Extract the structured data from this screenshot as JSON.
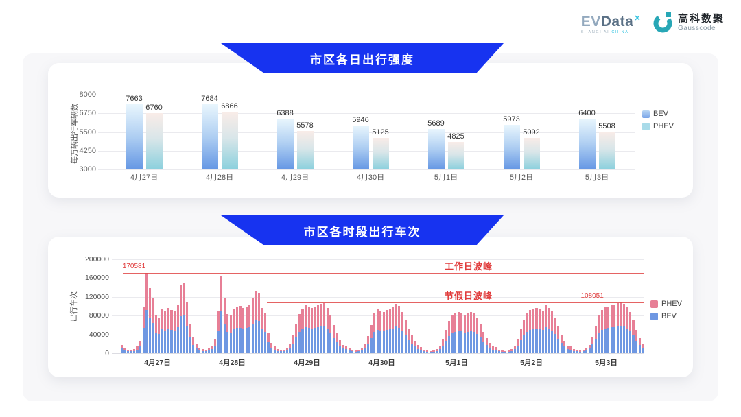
{
  "logos": {
    "evdata": {
      "ev": "EV",
      "data": "Data",
      "sup": "✕",
      "sub1": "SHANGHAI",
      "sub2": "CHINA"
    },
    "gausscode": {
      "cn": "高科数聚",
      "en": "Gausscode"
    }
  },
  "banners": {
    "daily": "市区各日出行强度",
    "hourly": "市区各时段出行车次"
  },
  "colors": {
    "banner_blue": "#1733f0",
    "bev_gradient_top": "#e9f6fd",
    "bev_gradient_bottom": "#6597e4",
    "phev_gradient_top": "#f9ece8",
    "phev_gradient_bottom": "#8bd0dd",
    "stacked_bev_blue": "#6e97e2",
    "stacked_phev_pink": "#e77f96",
    "annotation_red": "#e03a3a"
  },
  "chart_data": [
    {
      "type": "bar",
      "title": "市区各日出行强度",
      "ylabel": "每万辆出行车辆数",
      "ylim": [
        3000,
        8000
      ],
      "yticks": [
        3000,
        4250,
        5500,
        6750,
        8000
      ],
      "grid": true,
      "legend": [
        "BEV",
        "PHEV"
      ],
      "legend_position": "right",
      "categories": [
        "4月27日",
        "4月28日",
        "4月29日",
        "4月30日",
        "5月1日",
        "5月2日",
        "5月3日"
      ],
      "series": [
        {
          "name": "BEV",
          "values": [
            7663,
            7684,
            6388,
            5946,
            5689,
            5973,
            6400
          ]
        },
        {
          "name": "PHEV",
          "values": [
            6760,
            6866,
            5578,
            5125,
            4825,
            5092,
            5508
          ]
        }
      ]
    },
    {
      "type": "stacked-bar",
      "title": "市区各时段出行车次",
      "ylabel": "出行车次",
      "ylim": [
        0,
        200000
      ],
      "yticks": [
        0,
        40000,
        80000,
        120000,
        160000,
        200000
      ],
      "grid": true,
      "legend": [
        "PHEV",
        "BEV"
      ],
      "legend_position": "right",
      "hours_per_day": 24,
      "annotations": {
        "workday_peak": {
          "label": "工作日波峰",
          "value": 170581,
          "value_label": "170581"
        },
        "holiday_peak": {
          "label": "节假日波峰",
          "value": 108051,
          "value_label": "108051"
        }
      },
      "days": [
        {
          "date": "4月27日",
          "bev": [
            9700,
            5900,
            4300,
            3800,
            4900,
            7600,
            14600,
            54000,
            92114,
            74500,
            64300,
            43700,
            41000,
            51300,
            48600,
            51800,
            49700,
            48100,
            56200,
            78800,
            81000,
            58300,
            33500,
            17800
          ],
          "phev": [
            8300,
            5100,
            3700,
            3200,
            4100,
            6400,
            12400,
            46000,
            78467,
            63500,
            54700,
            37300,
            35000,
            43700,
            41400,
            44200,
            42300,
            40900,
            47800,
            67200,
            69000,
            49700,
            28500,
            15200
          ]
        },
        {
          "date": "4月28日",
          "bev": [
            10800,
            6500,
            4900,
            4300,
            5400,
            8600,
            16200,
            48600,
            89100,
            63200,
            44800,
            44300,
            51300,
            53500,
            54500,
            51800,
            54000,
            55600,
            63200,
            71800,
            69100,
            51800,
            45900,
            22700
          ],
          "phev": [
            9200,
            5500,
            4100,
            3700,
            4600,
            7400,
            13800,
            41400,
            75900,
            53800,
            38200,
            37700,
            43700,
            45500,
            46500,
            44200,
            46000,
            47400,
            53800,
            61200,
            58900,
            44200,
            39100,
            19300
          ]
        },
        {
          "date": "4月29日",
          "bev": [
            11900,
            7600,
            4900,
            3800,
            4300,
            5900,
            10800,
            20500,
            33500,
            44800,
            51300,
            55100,
            53500,
            51800,
            54000,
            55600,
            56700,
            57800,
            51800,
            43200,
            32400,
            22700,
            15100,
            9700
          ],
          "phev": [
            10100,
            6400,
            4100,
            3200,
            3700,
            5100,
            9200,
            17500,
            28500,
            38200,
            43700,
            46900,
            45500,
            44200,
            46000,
            47400,
            48300,
            49200,
            44200,
            36800,
            27600,
            19300,
            12900,
            8300
          ]
        },
        {
          "date": "4月30日",
          "bev": [
            8100,
            5400,
            3800,
            3200,
            3800,
            5400,
            10300,
            19400,
            32400,
            45400,
            50200,
            48600,
            47500,
            49700,
            51300,
            52900,
            56700,
            54500,
            47500,
            37800,
            28100,
            20500,
            14000,
            9200
          ],
          "phev": [
            6900,
            4600,
            3200,
            2800,
            3200,
            4600,
            8700,
            16600,
            27600,
            38600,
            42800,
            41400,
            40500,
            42300,
            43700,
            45100,
            48300,
            46500,
            40500,
            32200,
            23900,
            17500,
            12000,
            7800
          ]
        },
        {
          "date": "5月1日",
          "bev": [
            7000,
            4300,
            3200,
            2700,
            3200,
            4900,
            8600,
            16200,
            27000,
            36700,
            43200,
            45900,
            47500,
            46400,
            44300,
            45900,
            47000,
            45400,
            41000,
            33500,
            24800,
            17300,
            11900,
            7600
          ],
          "phev": [
            6000,
            3700,
            2800,
            2300,
            2800,
            4100,
            7400,
            13800,
            23000,
            31300,
            36800,
            39100,
            40500,
            39600,
            37700,
            39100,
            40000,
            38600,
            35000,
            28500,
            21200,
            14700,
            10100,
            6400
          ]
        },
        {
          "date": "5月2日",
          "bev": [
            7000,
            4300,
            3200,
            2700,
            3200,
            4900,
            8600,
            16700,
            28100,
            38900,
            45900,
            49700,
            51300,
            52400,
            50800,
            49100,
            55600,
            51800,
            48600,
            40500,
            31300,
            21600,
            14000,
            8600
          ],
          "phev": [
            6000,
            3700,
            2800,
            2300,
            2800,
            4100,
            7400,
            14300,
            23900,
            33100,
            39100,
            42300,
            43700,
            44600,
            43200,
            41900,
            47400,
            44200,
            41400,
            34500,
            26700,
            18400,
            12000,
            7400
          ]
        },
        {
          "date": "5月3日",
          "bev": [
            7600,
            4900,
            3800,
            3200,
            3800,
            5400,
            9700,
            18400,
            31300,
            43200,
            49700,
            52900,
            54000,
            55100,
            56200,
            57200,
            58348,
            56700,
            52900,
            47500,
            37800,
            27000,
            17300,
            10800
          ],
          "phev": [
            6400,
            4100,
            3200,
            2800,
            3200,
            4600,
            8300,
            15600,
            26700,
            36800,
            42300,
            45100,
            46000,
            46900,
            47800,
            48800,
            49703,
            48300,
            45100,
            40500,
            32200,
            23000,
            14700,
            9200
          ]
        }
      ]
    }
  ]
}
